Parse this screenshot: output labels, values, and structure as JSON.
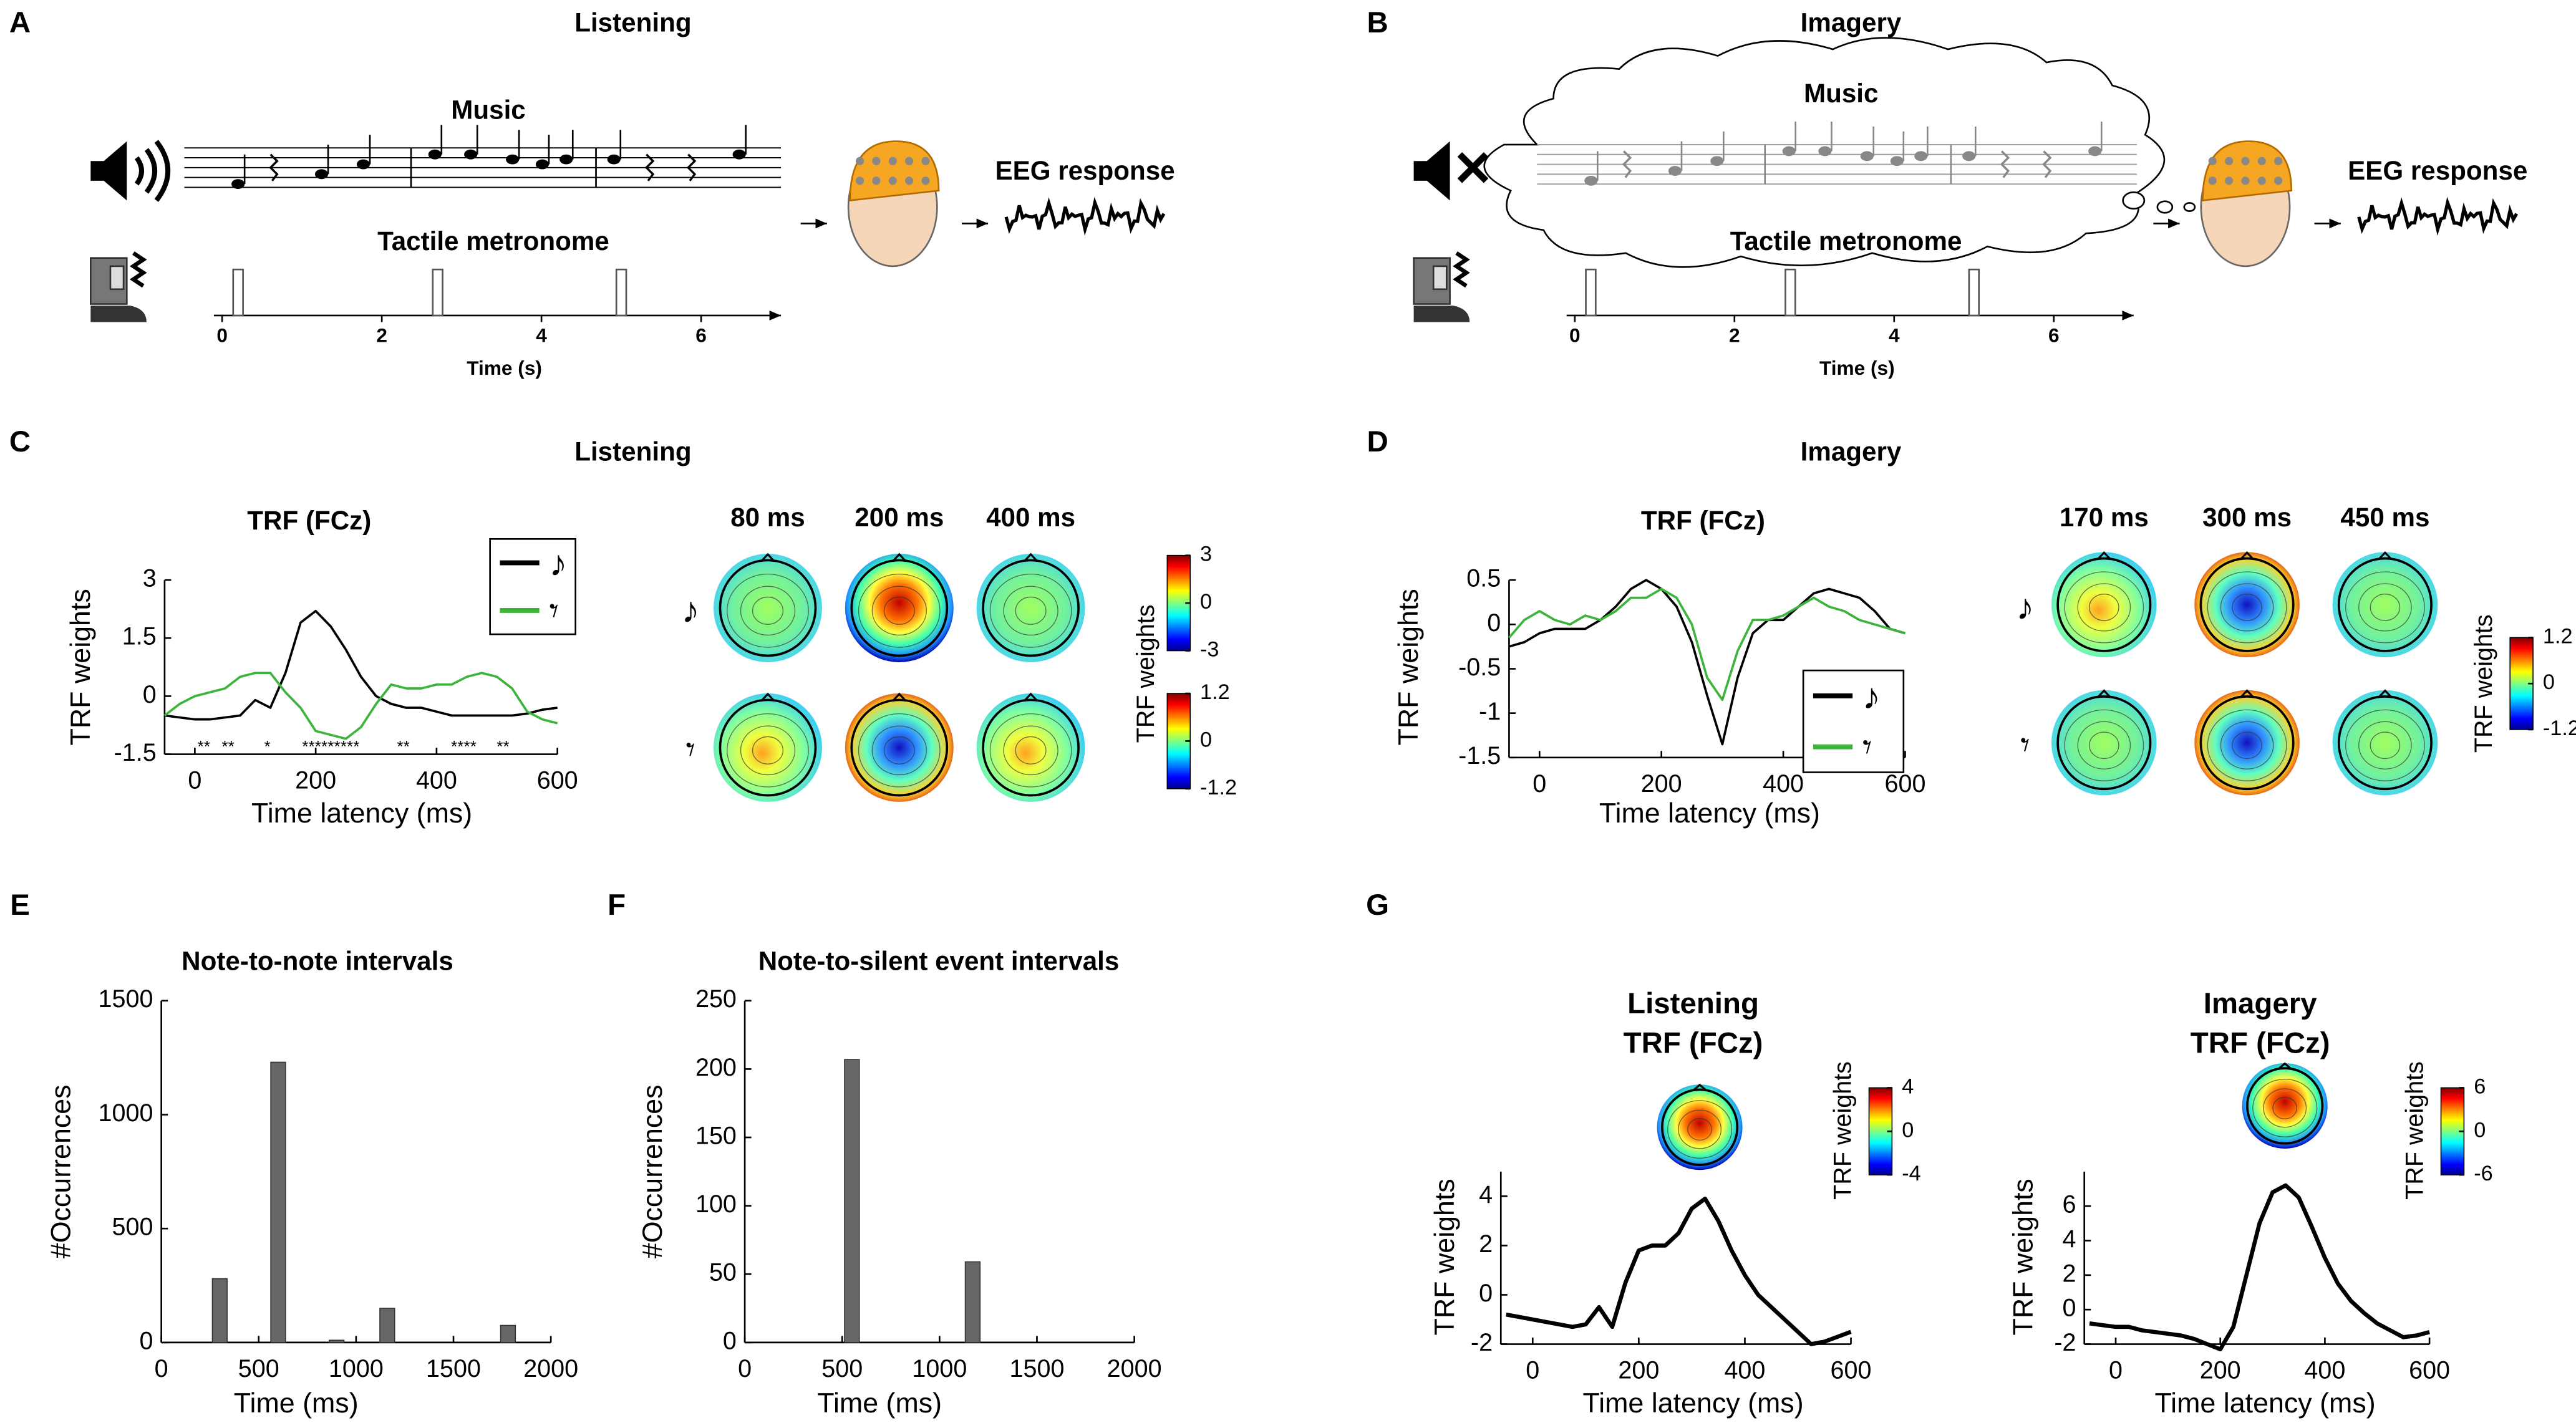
{
  "panels": {
    "A": {
      "label": "A",
      "title": "Listening",
      "music": "Music",
      "metronome": "Tactile metronome",
      "eeg": "EEG response",
      "xlabel": "Time (s)",
      "xlim": [
        0,
        7
      ],
      "xticks": [
        0,
        2,
        4,
        6
      ],
      "pulses": [
        0.2,
        2.7,
        5.0
      ]
    },
    "B": {
      "label": "B",
      "title": "Imagery",
      "music": "Music",
      "metronome": "Tactile metronome",
      "eeg": "EEG response",
      "xlabel": "Time (s)",
      "xlim": [
        0,
        7
      ],
      "xticks": [
        0,
        2,
        4,
        6
      ],
      "pulses": [
        0.2,
        2.7,
        5.0
      ]
    },
    "C": {
      "label": "C",
      "title": "Listening"
    },
    "D": {
      "label": "D",
      "title": "Imagery"
    },
    "E": {
      "label": "E"
    },
    "F": {
      "label": "F"
    },
    "G": {
      "label": "G"
    }
  },
  "chart_data": [
    {
      "type": "line",
      "title": "TRF (FCz)",
      "xlabel": "Time latency (ms)",
      "ylabel": "TRF weights",
      "x": [
        -50,
        -25,
        0,
        25,
        50,
        75,
        100,
        125,
        150,
        175,
        200,
        225,
        250,
        275,
        300,
        325,
        350,
        375,
        400,
        425,
        450,
        475,
        500,
        525,
        550,
        575,
        600
      ],
      "series": [
        {
          "name": "♪",
          "color": "#000000",
          "values": [
            -0.5,
            -0.55,
            -0.6,
            -0.6,
            -0.55,
            -0.5,
            -0.1,
            -0.3,
            0.6,
            1.9,
            2.2,
            1.8,
            1.2,
            0.5,
            0,
            -0.2,
            -0.3,
            -0.3,
            -0.4,
            -0.5,
            -0.5,
            -0.5,
            -0.5,
            -0.5,
            -0.45,
            -0.35,
            -0.3
          ]
        },
        {
          "name": "𝄾",
          "color": "#3cb43c",
          "values": [
            -0.5,
            -0.2,
            0,
            0.1,
            0.2,
            0.5,
            0.6,
            0.6,
            0.1,
            -0.3,
            -0.9,
            -1.0,
            -1.1,
            -0.8,
            -0.2,
            0.3,
            0.2,
            0.2,
            0.3,
            0.3,
            0.5,
            0.6,
            0.5,
            0.2,
            -0.4,
            -0.6,
            -0.7
          ]
        }
      ],
      "xlim": [
        -50,
        600
      ],
      "ylim": [
        -1.5,
        3
      ],
      "xticks": [
        0,
        200,
        400,
        600
      ],
      "yticks": [
        -1.5,
        0,
        1.5,
        3
      ],
      "legend": "upper right",
      "annotations": [
        {
          "text": "**",
          "x": 15
        },
        {
          "text": "**",
          "x": 55
        },
        {
          "text": "*",
          "x": 120
        },
        {
          "text": "*********",
          "x": 225
        },
        {
          "text": "**",
          "x": 345
        },
        {
          "text": "****",
          "x": 445
        },
        {
          "text": "**",
          "x": 510
        }
      ],
      "topomap_times": [
        "80 ms",
        "200 ms",
        "400 ms"
      ],
      "colorbars": [
        {
          "clim": [
            -3,
            3
          ],
          "ticks": [
            -3,
            0,
            3
          ]
        },
        {
          "clim": [
            -1.2,
            1.2
          ],
          "ticks": [
            -1.2,
            0,
            1.2
          ]
        }
      ],
      "colorbar_label": "TRF weights"
    },
    {
      "type": "line",
      "title": "TRF (FCz)",
      "xlabel": "Time latency (ms)",
      "ylabel": "TRF weights",
      "x": [
        -50,
        -25,
        0,
        25,
        50,
        75,
        100,
        125,
        150,
        175,
        200,
        225,
        250,
        275,
        300,
        325,
        350,
        375,
        400,
        425,
        450,
        475,
        500,
        525,
        550,
        575,
        600
      ],
      "series": [
        {
          "name": "♪",
          "color": "#000000",
          "values": [
            -0.25,
            -0.2,
            -0.1,
            -0.05,
            -0.05,
            -0.05,
            0.05,
            0.2,
            0.4,
            0.5,
            0.4,
            0.2,
            -0.2,
            -0.8,
            -1.35,
            -0.6,
            -0.1,
            0.05,
            0.05,
            0.2,
            0.35,
            0.4,
            0.35,
            0.3,
            0.15,
            -0.05,
            -0.1
          ]
        },
        {
          "name": "𝄾",
          "color": "#3cb43c",
          "values": [
            -0.15,
            0.05,
            0.15,
            0.05,
            0,
            0.1,
            0.05,
            0.15,
            0.3,
            0.3,
            0.4,
            0.3,
            0,
            -0.6,
            -0.85,
            -0.3,
            0.05,
            0.05,
            0.1,
            0.2,
            0.3,
            0.2,
            0.15,
            0.05,
            0,
            -0.05,
            -0.1
          ]
        }
      ],
      "xlim": [
        -50,
        600
      ],
      "ylim": [
        -1.5,
        0.5
      ],
      "xticks": [
        0,
        200,
        400,
        600
      ],
      "yticks": [
        -1.5,
        -1,
        -0.5,
        0,
        0.5
      ],
      "legend": "lower right",
      "topomap_times": [
        "170 ms",
        "300 ms",
        "450 ms"
      ],
      "colorbars": [
        {
          "clim": [
            -1.2,
            1.2
          ],
          "ticks": [
            -1.2,
            0,
            1.2
          ]
        }
      ],
      "colorbar_label": "TRF weights"
    },
    {
      "type": "bar",
      "title": "Note-to-note intervals",
      "xlabel": "Time  (ms)",
      "ylabel": "#Occurrences",
      "x": [
        300,
        600,
        900,
        1160,
        1780
      ],
      "values": [
        280,
        1230,
        10,
        150,
        75
      ],
      "color": "#666666",
      "xlim": [
        0,
        2000
      ],
      "ylim": [
        0,
        1500
      ],
      "xticks": [
        0,
        500,
        1000,
        1500,
        2000
      ],
      "yticks": [
        0,
        500,
        1000,
        1500
      ]
    },
    {
      "type": "bar",
      "title": "Note-to-silent event intervals",
      "xlabel": "Time  (ms)",
      "ylabel": "#Occurrences",
      "x": [
        550,
        1170
      ],
      "values": [
        207,
        59
      ],
      "color": "#666666",
      "xlim": [
        0,
        2000
      ],
      "ylim": [
        0,
        250
      ],
      "xticks": [
        0,
        500,
        1000,
        1500,
        2000
      ],
      "yticks": [
        0,
        50,
        100,
        150,
        200,
        250
      ]
    },
    {
      "type": "line",
      "title": "Listening",
      "subtitle": "TRF (FCz)",
      "xlabel": "Time latency (ms)",
      "ylabel": "TRF weights",
      "x": [
        -50,
        -25,
        0,
        25,
        50,
        75,
        100,
        125,
        150,
        175,
        200,
        225,
        250,
        275,
        300,
        325,
        350,
        375,
        400,
        425,
        450,
        475,
        500,
        525,
        550,
        575,
        600
      ],
      "series": [
        {
          "color": "#000000",
          "values": [
            -0.8,
            -0.9,
            -1.0,
            -1.1,
            -1.2,
            -1.3,
            -1.2,
            -0.5,
            -1.3,
            0.5,
            1.8,
            2.0,
            2.0,
            2.5,
            3.5,
            3.9,
            3.0,
            1.8,
            0.8,
            0,
            -0.5,
            -1.0,
            -1.5,
            -2.0,
            -1.9,
            -1.7,
            -1.5
          ]
        }
      ],
      "xlim": [
        -60,
        600
      ],
      "ylim": [
        -2,
        5
      ],
      "xticks": [
        0,
        200,
        400,
        600
      ],
      "yticks": [
        -2,
        0,
        2,
        4
      ],
      "colorbars": [
        {
          "clim": [
            -4,
            4
          ],
          "ticks": [
            -4,
            0,
            4
          ]
        }
      ],
      "colorbar_label": "TRF weights"
    },
    {
      "type": "line",
      "title": "Imagery",
      "subtitle": "TRF (FCz)",
      "xlabel": "Time latency (ms)",
      "ylabel": "TRF weights",
      "x": [
        -50,
        -25,
        0,
        25,
        50,
        75,
        100,
        125,
        150,
        175,
        200,
        225,
        250,
        275,
        300,
        325,
        350,
        375,
        400,
        425,
        450,
        475,
        500,
        525,
        550,
        575,
        600
      ],
      "series": [
        {
          "color": "#000000",
          "values": [
            -0.8,
            -0.9,
            -1.0,
            -1.0,
            -1.2,
            -1.3,
            -1.4,
            -1.5,
            -1.7,
            -2.0,
            -2.3,
            -1.0,
            2.0,
            5.0,
            6.8,
            7.2,
            6.5,
            4.8,
            3.0,
            1.5,
            0.5,
            -0.2,
            -0.8,
            -1.2,
            -1.6,
            -1.5,
            -1.3
          ]
        }
      ],
      "xlim": [
        -60,
        600
      ],
      "ylim": [
        -2,
        8
      ],
      "xticks": [
        0,
        200,
        400,
        600
      ],
      "yticks": [
        -2,
        0,
        2,
        4,
        6
      ],
      "colorbars": [
        {
          "clim": [
            -6,
            6
          ],
          "ticks": [
            -6,
            0,
            6
          ]
        }
      ],
      "colorbar_label": "TRF weights"
    }
  ]
}
